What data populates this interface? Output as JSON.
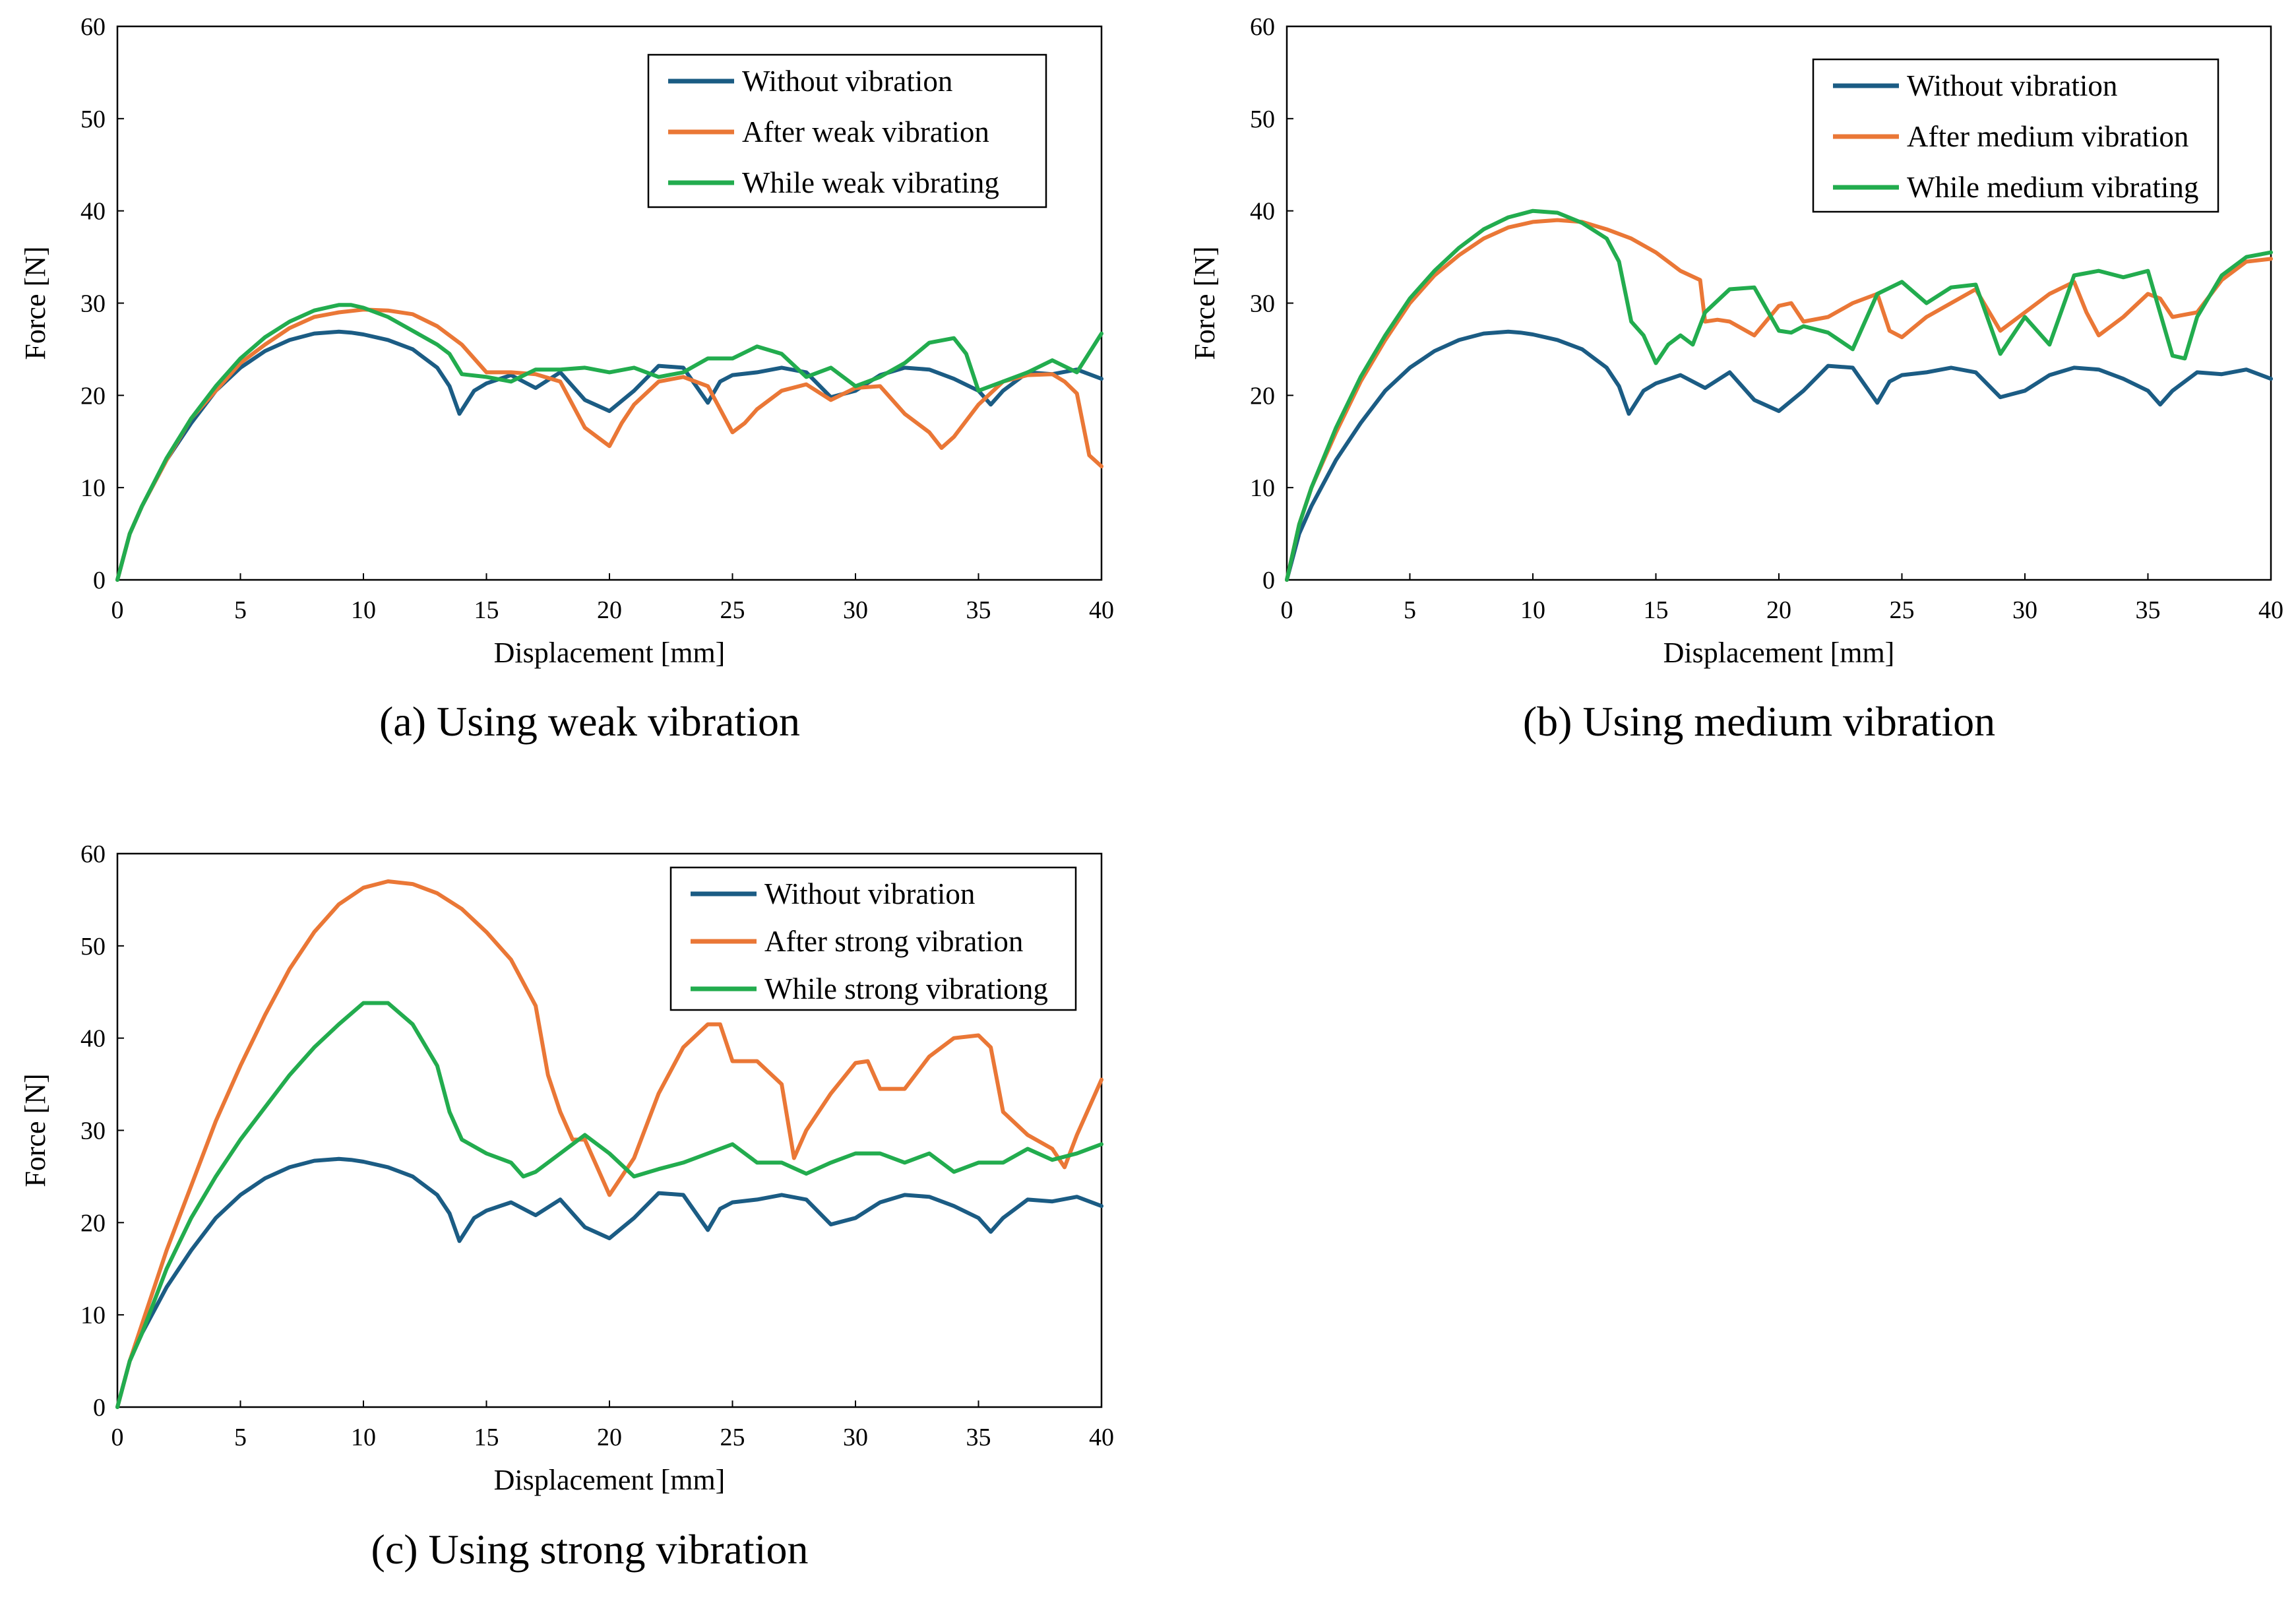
{
  "colors": {
    "without": "#1b5c84",
    "after": "#ea7736",
    "while": "#22ac4e"
  },
  "chart_data": [
    {
      "type": "line",
      "caption": "(a) Using weak vibration",
      "xlabel": "Displacement [mm]",
      "ylabel": "Force [N]",
      "xlim": [
        0,
        40
      ],
      "ylim": [
        0,
        60
      ],
      "xticks": [
        0,
        5,
        10,
        15,
        20,
        25,
        30,
        35,
        40
      ],
      "yticks": [
        0,
        10,
        20,
        30,
        40,
        50,
        60
      ],
      "legend_position": "top-right",
      "series": [
        {
          "name": "Without vibration",
          "color_key": "without",
          "x": [
            0,
            0.5,
            1,
            2,
            3,
            4,
            5,
            6,
            7,
            8,
            9,
            9.5,
            10,
            11,
            12,
            13,
            13.5,
            13.9,
            14.5,
            15,
            16,
            17,
            18,
            19,
            20,
            21,
            22,
            23,
            24,
            24.5,
            25,
            26,
            27,
            28,
            29,
            30,
            31,
            32,
            33,
            34,
            35,
            35.5,
            36,
            37,
            38,
            39,
            40
          ],
          "y": [
            0,
            5,
            8,
            13,
            17,
            20.5,
            23,
            24.8,
            26,
            26.7,
            26.9,
            26.8,
            26.6,
            26,
            25,
            23,
            21,
            18,
            20.5,
            21.3,
            22.2,
            20.8,
            22.5,
            19.5,
            18.3,
            20.5,
            23.2,
            23,
            19.2,
            21.5,
            22.2,
            22.5,
            23,
            22.5,
            19.8,
            20.5,
            22.2,
            23,
            22.8,
            21.8,
            20.5,
            19,
            20.5,
            22.5,
            22.3,
            22.8,
            21.8
          ]
        },
        {
          "name": "After weak vibration",
          "color_key": "after",
          "x": [
            0,
            0.5,
            1,
            2,
            3,
            4,
            5,
            6,
            7,
            8,
            9,
            10,
            11,
            12,
            13,
            14,
            15,
            16,
            17,
            18,
            19,
            19.5,
            20,
            20.5,
            21,
            22,
            23,
            24,
            25,
            25.5,
            26,
            27,
            28,
            29,
            30,
            31,
            32,
            33,
            33.5,
            34,
            35,
            36,
            37,
            38,
            38.5,
            39,
            39.5,
            40
          ],
          "y": [
            0,
            5,
            8,
            13,
            17.5,
            20.5,
            23.5,
            25.5,
            27.3,
            28.5,
            29,
            29.3,
            29.2,
            28.8,
            27.5,
            25.5,
            22.5,
            22.5,
            22.3,
            21.5,
            16.5,
            15.5,
            14.5,
            17,
            19,
            21.5,
            22,
            21,
            16,
            17,
            18.5,
            20.5,
            21.2,
            19.5,
            20.8,
            21,
            18,
            16,
            14.3,
            15.5,
            19,
            21.5,
            22.2,
            22.3,
            21.5,
            20.2,
            13.5,
            12.3
          ]
        },
        {
          "name": "While weak vibrating",
          "color_key": "while",
          "x": [
            0,
            0.5,
            1,
            2,
            3,
            4,
            5,
            6,
            7,
            8,
            9,
            9.5,
            10,
            11,
            12,
            13,
            13.5,
            14,
            15,
            16,
            17,
            18,
            19,
            20,
            21,
            22,
            23,
            24,
            25,
            26,
            27,
            28,
            29,
            30,
            31,
            32,
            33,
            34,
            34.5,
            35,
            36,
            37,
            38,
            39,
            40
          ],
          "y": [
            0,
            5,
            8,
            13.2,
            17.5,
            21,
            24,
            26.3,
            28,
            29.2,
            29.8,
            29.8,
            29.5,
            28.5,
            27,
            25.5,
            24.5,
            22.3,
            22,
            21.5,
            22.8,
            22.8,
            23,
            22.5,
            23,
            22,
            22.5,
            24,
            24,
            25.3,
            24.5,
            22,
            23,
            21,
            22,
            23.5,
            25.7,
            26.2,
            24.5,
            20.5,
            21.5,
            22.5,
            23.8,
            22.5,
            26.7
          ]
        }
      ]
    },
    {
      "type": "line",
      "caption": "(b) Using medium vibration",
      "xlabel": "Displacement [mm]",
      "ylabel": "Force [N]",
      "xlim": [
        0,
        40
      ],
      "ylim": [
        0,
        60
      ],
      "xticks": [
        0,
        5,
        10,
        15,
        20,
        25,
        30,
        35,
        40
      ],
      "yticks": [
        0,
        10,
        20,
        30,
        40,
        50,
        60
      ],
      "legend_position": "top-right",
      "series": [
        {
          "name": "Without vibration",
          "color_key": "without",
          "x": [
            0,
            0.5,
            1,
            2,
            3,
            4,
            5,
            6,
            7,
            8,
            9,
            9.5,
            10,
            11,
            12,
            13,
            13.5,
            13.9,
            14.5,
            15,
            16,
            17,
            18,
            19,
            20,
            21,
            22,
            23,
            24,
            24.5,
            25,
            26,
            27,
            28,
            29,
            30,
            31,
            32,
            33,
            34,
            35,
            35.5,
            36,
            37,
            38,
            39,
            40
          ],
          "y": [
            0,
            5,
            8,
            13,
            17,
            20.5,
            23,
            24.8,
            26,
            26.7,
            26.9,
            26.8,
            26.6,
            26,
            25,
            23,
            21,
            18,
            20.5,
            21.3,
            22.2,
            20.8,
            22.5,
            19.5,
            18.3,
            20.5,
            23.2,
            23,
            19.2,
            21.5,
            22.2,
            22.5,
            23,
            22.5,
            19.8,
            20.5,
            22.2,
            23,
            22.8,
            21.8,
            20.5,
            19,
            20.5,
            22.5,
            22.3,
            22.8,
            21.8
          ]
        },
        {
          "name": "After medium vibration",
          "color_key": "after",
          "x": [
            0,
            0.5,
            1,
            2,
            3,
            4,
            5,
            6,
            7,
            8,
            9,
            10,
            11,
            12,
            13,
            14,
            15,
            16,
            16.8,
            17,
            17.5,
            18,
            19,
            20,
            20.5,
            21,
            22,
            23,
            24,
            24.5,
            25,
            26,
            27,
            28,
            29,
            30,
            31,
            32,
            32.5,
            33,
            34,
            35,
            35.5,
            36,
            37,
            38,
            39,
            40
          ],
          "y": [
            0,
            6,
            10,
            16,
            21.5,
            26,
            30,
            33,
            35.2,
            37,
            38.2,
            38.8,
            39,
            38.8,
            38,
            37,
            35.5,
            33.5,
            32.5,
            28,
            28.2,
            28,
            26.5,
            29.7,
            30,
            28,
            28.5,
            30,
            31,
            27,
            26.3,
            28.5,
            30,
            31.5,
            27,
            29,
            31,
            32.3,
            29,
            26.5,
            28.5,
            31,
            30.5,
            28.5,
            29,
            32.5,
            34.5,
            34.8
          ]
        },
        {
          "name": "While medium vibrating",
          "color_key": "while",
          "x": [
            0,
            0.5,
            1,
            2,
            3,
            4,
            5,
            6,
            7,
            8,
            9,
            10,
            11,
            12,
            13,
            13.5,
            14,
            14.5,
            15,
            15.5,
            16,
            16.5,
            17,
            18,
            19,
            20,
            20.5,
            21,
            22,
            23,
            24,
            25,
            26,
            27,
            28,
            29,
            30,
            31,
            32,
            33,
            34,
            35,
            36,
            36.5,
            37,
            38,
            39,
            40
          ],
          "y": [
            0,
            6,
            10,
            16.5,
            22,
            26.5,
            30.5,
            33.5,
            36,
            38,
            39.3,
            40,
            39.8,
            38.7,
            37,
            34.5,
            28,
            26.5,
            23.5,
            25.5,
            26.5,
            25.5,
            29,
            31.5,
            31.7,
            27,
            26.8,
            27.5,
            26.8,
            25,
            31,
            32.3,
            30,
            31.7,
            32,
            24.5,
            28.5,
            25.5,
            33,
            33.5,
            32.8,
            33.5,
            24.3,
            24,
            28.5,
            33,
            35,
            35.5
          ]
        }
      ]
    },
    {
      "type": "line",
      "caption": "(c) Using strong vibration",
      "xlabel": "Displacement [mm]",
      "ylabel": "Force [N]",
      "xlim": [
        0,
        40
      ],
      "ylim": [
        0,
        60
      ],
      "xticks": [
        0,
        5,
        10,
        15,
        20,
        25,
        30,
        35,
        40
      ],
      "yticks": [
        0,
        10,
        20,
        30,
        40,
        50,
        60
      ],
      "legend_position": "top-right",
      "series": [
        {
          "name": "Without vibration",
          "color_key": "without",
          "x": [
            0,
            0.5,
            1,
            2,
            3,
            4,
            5,
            6,
            7,
            8,
            9,
            9.5,
            10,
            11,
            12,
            13,
            13.5,
            13.9,
            14.5,
            15,
            16,
            17,
            18,
            19,
            20,
            21,
            22,
            23,
            24,
            24.5,
            25,
            26,
            27,
            28,
            29,
            30,
            31,
            32,
            33,
            34,
            35,
            35.5,
            36,
            37,
            38,
            39,
            40
          ],
          "y": [
            0,
            5,
            8,
            13,
            17,
            20.5,
            23,
            24.8,
            26,
            26.7,
            26.9,
            26.8,
            26.6,
            26,
            25,
            23,
            21,
            18,
            20.5,
            21.3,
            22.2,
            20.8,
            22.5,
            19.5,
            18.3,
            20.5,
            23.2,
            23,
            19.2,
            21.5,
            22.2,
            22.5,
            23,
            22.5,
            19.8,
            20.5,
            22.2,
            23,
            22.8,
            21.8,
            20.5,
            19,
            20.5,
            22.5,
            22.3,
            22.8,
            21.8
          ]
        },
        {
          "name": "After strong vibration",
          "color_key": "after",
          "x": [
            0,
            0.5,
            1,
            2,
            3,
            4,
            5,
            6,
            7,
            8,
            9,
            10,
            11,
            12,
            13,
            14,
            15,
            16,
            17,
            17.5,
            18,
            18.5,
            19,
            19.5,
            20,
            21,
            22,
            23,
            24,
            24.5,
            25,
            26,
            27,
            27.5,
            28,
            29,
            30,
            30.5,
            31,
            32,
            33,
            34,
            35,
            35.5,
            36,
            37,
            38,
            38.5,
            39,
            40
          ],
          "y": [
            0,
            5,
            9,
            17,
            24,
            31,
            37,
            42.5,
            47.5,
            51.5,
            54.5,
            56.3,
            57,
            56.7,
            55.7,
            54,
            51.5,
            48.5,
            43.5,
            36,
            32,
            29,
            29,
            26,
            23,
            27,
            34,
            39,
            41.5,
            41.5,
            37.5,
            37.5,
            35,
            27,
            30,
            34,
            37.3,
            37.5,
            34.5,
            34.5,
            38,
            40,
            40.3,
            39,
            32,
            29.5,
            28,
            26,
            29.5,
            35.5
          ]
        },
        {
          "name": "While strong vibrationg",
          "color_key": "while",
          "x": [
            0,
            0.5,
            1,
            2,
            3,
            4,
            5,
            6,
            7,
            8,
            9,
            10,
            11,
            12,
            13,
            13.5,
            14,
            15,
            16,
            16.5,
            17,
            18,
            19,
            20,
            21,
            22,
            23,
            24,
            25,
            26,
            27,
            28,
            29,
            30,
            31,
            32,
            33,
            34,
            35,
            36,
            37,
            38,
            39,
            40
          ],
          "y": [
            0,
            5,
            8,
            15,
            20.5,
            25,
            29,
            32.5,
            36,
            39,
            41.5,
            43.8,
            43.8,
            41.5,
            37,
            32,
            29,
            27.5,
            26.5,
            25,
            25.5,
            27.5,
            29.5,
            27.5,
            25,
            25.8,
            26.5,
            27.5,
            28.5,
            26.5,
            26.5,
            25.3,
            26.5,
            27.5,
            27.5,
            26.5,
            27.5,
            25.5,
            26.5,
            26.5,
            28,
            26.8,
            27.5,
            28.5
          ]
        }
      ]
    }
  ]
}
